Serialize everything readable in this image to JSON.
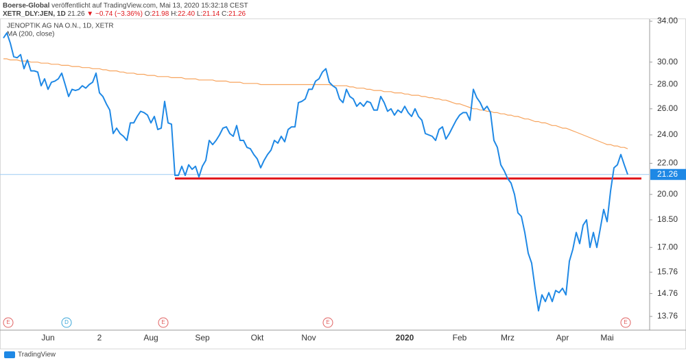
{
  "header": {
    "publisher": "Boerse-Global",
    "published": "veröffentlicht auf TradingView.com, Mai 13, 2020 15:32:18 CEST",
    "symbol": "XETR_DLY:JEN, 1D",
    "last": "21.26",
    "change": "▼ −0.74 (−3.36%)",
    "open_label": "O:",
    "open": "21.98",
    "high_label": "H:",
    "high": "22.40",
    "low_label": "L:",
    "low": "21.14",
    "close_label": "C:",
    "close": "21.26"
  },
  "footer": {
    "brand": "TradingView"
  },
  "chart_data": {
    "type": "line",
    "log": true,
    "grid": false,
    "categories": [
      null,
      null,
      null,
      null,
      null,
      null,
      null,
      null,
      null,
      null,
      null,
      null,
      null,
      "Jun",
      null,
      null,
      null,
      null,
      null,
      null,
      null,
      null,
      null,
      null,
      null,
      null,
      null,
      null,
      "2",
      null,
      null,
      null,
      null,
      null,
      null,
      null,
      null,
      null,
      null,
      null,
      null,
      null,
      null,
      "Aug",
      null,
      null,
      null,
      null,
      null,
      null,
      null,
      null,
      null,
      null,
      null,
      null,
      null,
      null,
      "Sep",
      null,
      null,
      null,
      null,
      null,
      null,
      null,
      null,
      null,
      null,
      null,
      null,
      null,
      null,
      null,
      "Okt",
      null,
      null,
      null,
      null,
      null,
      null,
      null,
      null,
      null,
      null,
      null,
      null,
      null,
      null,
      "Nov",
      null,
      null,
      null,
      null,
      null,
      null,
      null,
      null,
      null,
      null,
      null,
      null,
      null,
      null,
      null,
      null,
      null,
      null,
      null,
      null,
      null,
      null,
      null,
      null,
      null,
      null,
      null,
      "2020",
      null,
      null,
      null,
      null,
      null,
      null,
      null,
      null,
      null,
      null,
      null,
      null,
      null,
      null,
      null,
      "Feb",
      null,
      null,
      null,
      null,
      null,
      null,
      null,
      null,
      null,
      null,
      null,
      null,
      null,
      "Mrz",
      null,
      null,
      null,
      null,
      null,
      null,
      null,
      null,
      null,
      null,
      null,
      null,
      null,
      null,
      null,
      "Apr",
      null,
      null,
      null,
      null,
      null,
      null,
      null,
      null,
      null,
      null,
      null,
      null,
      "Mai",
      null,
      null,
      null,
      null,
      null,
      null
    ],
    "series": [
      {
        "name": "JENOPTIK AG NA O.N., 1D, XETR",
        "color": "#1e88e5",
        "values": [
          32.3,
          32.8,
          31.8,
          30.5,
          30.4,
          30.7,
          29.4,
          30.2,
          29.2,
          29.2,
          29.1,
          27.9,
          28.5,
          27.6,
          28.2,
          28.3,
          28.5,
          29.0,
          28.0,
          27.0,
          27.6,
          27.5,
          27.6,
          27.9,
          27.7,
          28.0,
          28.2,
          29.0,
          27.3,
          27.0,
          26.4,
          25.9,
          24.1,
          24.5,
          24.1,
          23.9,
          23.6,
          24.9,
          24.9,
          25.4,
          25.8,
          25.7,
          25.5,
          24.9,
          25.4,
          24.4,
          24.5,
          26.6,
          24.9,
          24.8,
          21.2,
          21.2,
          21.8,
          21.2,
          21.9,
          21.6,
          21.8,
          21.1,
          21.8,
          22.2,
          23.6,
          23.3,
          23.6,
          24.0,
          24.5,
          24.6,
          24.1,
          23.9,
          24.7,
          23.6,
          23.6,
          23.1,
          23.0,
          22.6,
          22.3,
          21.7,
          22.2,
          22.6,
          22.9,
          23.6,
          23.4,
          23.9,
          23.5,
          24.4,
          24.6,
          24.6,
          26.5,
          26.6,
          26.8,
          27.6,
          27.6,
          28.3,
          28.5,
          29.1,
          29.4,
          28.2,
          27.9,
          27.7,
          26.8,
          26.5,
          27.6,
          27.0,
          26.8,
          26.2,
          26.5,
          26.2,
          26.6,
          26.5,
          25.9,
          25.9,
          27.0,
          26.5,
          25.8,
          26.0,
          25.5,
          25.9,
          25.7,
          26.2,
          25.7,
          25.4,
          26.0,
          25.4,
          25.1,
          24.1,
          24.0,
          23.9,
          23.6,
          24.4,
          24.6,
          23.7,
          24.1,
          24.6,
          25.1,
          25.5,
          25.7,
          25.7,
          25.1,
          27.6,
          26.9,
          26.5,
          25.9,
          26.2,
          25.7,
          23.6,
          23.1,
          21.9,
          21.5,
          21.0,
          20.7,
          20.0,
          18.9,
          18.7,
          17.8,
          16.7,
          16.2,
          15.0,
          14.0,
          14.7,
          14.4,
          14.8,
          14.4,
          14.9,
          14.8,
          15.0,
          14.7,
          16.3,
          16.9,
          17.8,
          17.2,
          18.2,
          18.5,
          17.0,
          17.8,
          17.0,
          18.0,
          19.1,
          18.4,
          20.2,
          21.7,
          21.9,
          22.6,
          21.9,
          21.26
        ]
      },
      {
        "name": "MA (200, close)",
        "color": "#f7a35c",
        "values": [
          30.3,
          30.3,
          30.2,
          30.2,
          30.2,
          30.1,
          30.1,
          30.1,
          30.0,
          30.0,
          30.0,
          29.9,
          29.9,
          29.9,
          29.8,
          29.8,
          29.8,
          29.7,
          29.7,
          29.7,
          29.6,
          29.6,
          29.6,
          29.5,
          29.5,
          29.5,
          29.4,
          29.4,
          29.4,
          29.3,
          29.3,
          29.2,
          29.2,
          29.2,
          29.1,
          29.1,
          29.0,
          29.0,
          29.0,
          28.9,
          28.9,
          28.9,
          28.8,
          28.8,
          28.8,
          28.7,
          28.7,
          28.7,
          28.7,
          28.6,
          28.6,
          28.6,
          28.6,
          28.5,
          28.5,
          28.5,
          28.5,
          28.4,
          28.4,
          28.4,
          28.4,
          28.4,
          28.3,
          28.3,
          28.3,
          28.3,
          28.2,
          28.2,
          28.2,
          28.2,
          28.1,
          28.1,
          28.1,
          28.1,
          28.1,
          28.0,
          28.0,
          28.0,
          28.0,
          28.0,
          28.0,
          28.0,
          28.0,
          28.0,
          28.0,
          28.0,
          28.0,
          28.0,
          28.0,
          28.0,
          28.0,
          28.0,
          28.0,
          28.0,
          28.0,
          28.0,
          27.9,
          27.9,
          27.9,
          27.9,
          27.9,
          27.8,
          27.8,
          27.7,
          27.7,
          27.7,
          27.6,
          27.6,
          27.5,
          27.5,
          27.5,
          27.4,
          27.4,
          27.4,
          27.3,
          27.3,
          27.3,
          27.2,
          27.2,
          27.1,
          27.1,
          27.1,
          27.0,
          27.0,
          26.9,
          26.9,
          26.8,
          26.8,
          26.7,
          26.7,
          26.6,
          26.5,
          26.4,
          26.4,
          26.3,
          26.2,
          26.1,
          26.0,
          26.0,
          25.9,
          25.9,
          25.8,
          25.8,
          25.7,
          25.7,
          25.6,
          25.6,
          25.5,
          25.5,
          25.4,
          25.4,
          25.3,
          25.2,
          25.2,
          25.1,
          25.0,
          25.0,
          24.9,
          24.9,
          24.8,
          24.7,
          24.7,
          24.6,
          24.5,
          24.5,
          24.4,
          24.3,
          24.2,
          24.1,
          24.0,
          23.9,
          23.8,
          23.7,
          23.6,
          23.5,
          23.4,
          23.3,
          23.3,
          23.2,
          23.2,
          23.1,
          23.1,
          23.0
        ]
      }
    ],
    "hlines": [
      {
        "value": 21.0,
        "color": "#e0161b"
      }
    ],
    "events": [
      "E",
      "D",
      "E",
      "E",
      "E"
    ],
    "ylim": [
      13.25,
      34.65
    ],
    "yticks": [
      {
        "value": 34,
        "label": "34.00"
      },
      {
        "value": 30,
        "label": "30.00"
      },
      {
        "value": 28,
        "label": "28.00"
      },
      {
        "value": 26,
        "label": "26.00"
      },
      {
        "value": 24,
        "label": "24.00"
      },
      {
        "value": 22,
        "label": "22.00"
      },
      {
        "value": 20,
        "label": "20.00"
      },
      {
        "value": 18.5,
        "label": "18.50"
      },
      {
        "value": 17,
        "label": "17.00"
      },
      15.76,
      14.76,
      13.76
    ]
  }
}
